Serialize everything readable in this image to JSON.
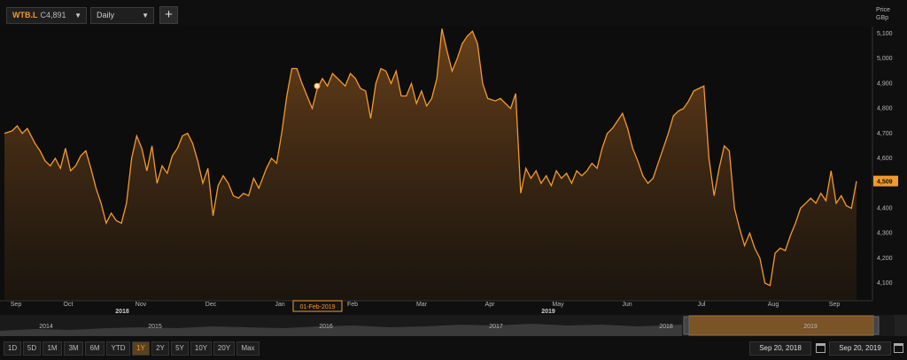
{
  "toolbar": {
    "symbol": "WTB.L",
    "symbol_price": "C4,891",
    "interval": "Daily",
    "add_label": "+"
  },
  "colors": {
    "line": "#f29a2e",
    "fill_top": "#7a4a1c",
    "background": "#0f0f0f",
    "label_bg": "#f29a2e"
  },
  "chart_data": {
    "type": "area",
    "ylabel": "Price\nGBp",
    "y_ticks": [
      4100,
      4200,
      4300,
      4400,
      4500,
      4600,
      4700,
      4800,
      4900,
      5000,
      5100
    ],
    "ylim": [
      4050,
      5150
    ],
    "grid": false,
    "last_value_label": "4,509",
    "crosshair_label": "01-Feb-2019",
    "x_month_ticks": [
      {
        "label": "Sep",
        "date": "2018-09-20"
      },
      {
        "label": "Oct",
        "date": "2018-10-01"
      },
      {
        "label": "Nov",
        "date": "2018-11-01"
      },
      {
        "label": "Dec",
        "date": "2018-12-01"
      },
      {
        "label": "Jan",
        "date": "2019-01-01"
      },
      {
        "label": "Feb",
        "date": "2019-02-01"
      },
      {
        "label": "Mar",
        "date": "2019-03-01"
      },
      {
        "label": "Apr",
        "date": "2019-04-01"
      },
      {
        "label": "May",
        "date": "2019-05-01"
      },
      {
        "label": "Jun",
        "date": "2019-06-01"
      },
      {
        "label": "Jul",
        "date": "2019-07-01"
      },
      {
        "label": "Aug",
        "date": "2019-08-01"
      },
      {
        "label": "Sep",
        "date": "2019-09-01"
      }
    ],
    "year_labels": [
      {
        "label": "2018",
        "date": "2018-10-15"
      },
      {
        "label": "2019",
        "date": "2019-05-01"
      }
    ],
    "marker": {
      "date": "2019-02-01",
      "value": 4890
    },
    "series": [
      {
        "points": [
          [
            "2018-09-20",
            4700
          ],
          [
            "2018-09-23",
            4710
          ],
          [
            "2018-09-25",
            4730
          ],
          [
            "2018-09-27",
            4700
          ],
          [
            "2018-09-29",
            4720
          ],
          [
            "2018-10-02",
            4660
          ],
          [
            "2018-10-04",
            4630
          ],
          [
            "2018-10-06",
            4590
          ],
          [
            "2018-10-08",
            4570
          ],
          [
            "2018-10-10",
            4600
          ],
          [
            "2018-10-12",
            4560
          ],
          [
            "2018-10-14",
            4640
          ],
          [
            "2018-10-16",
            4550
          ],
          [
            "2018-10-18",
            4570
          ],
          [
            "2018-10-20",
            4610
          ],
          [
            "2018-10-22",
            4630
          ],
          [
            "2018-10-24",
            4560
          ],
          [
            "2018-10-26",
            4480
          ],
          [
            "2018-10-28",
            4420
          ],
          [
            "2018-10-30",
            4340
          ],
          [
            "2018-11-01",
            4380
          ],
          [
            "2018-11-03",
            4350
          ],
          [
            "2018-11-05",
            4340
          ],
          [
            "2018-11-07",
            4420
          ],
          [
            "2018-11-09",
            4600
          ],
          [
            "2018-11-11",
            4690
          ],
          [
            "2018-11-13",
            4640
          ],
          [
            "2018-11-15",
            4550
          ],
          [
            "2018-11-17",
            4650
          ],
          [
            "2018-11-19",
            4500
          ],
          [
            "2018-11-21",
            4570
          ],
          [
            "2018-11-23",
            4540
          ],
          [
            "2018-11-25",
            4610
          ],
          [
            "2018-11-27",
            4640
          ],
          [
            "2018-11-29",
            4690
          ],
          [
            "2018-12-01",
            4700
          ],
          [
            "2018-12-03",
            4660
          ],
          [
            "2018-12-05",
            4590
          ],
          [
            "2018-12-07",
            4500
          ],
          [
            "2018-12-09",
            4560
          ],
          [
            "2018-12-11",
            4370
          ],
          [
            "2018-12-13",
            4490
          ],
          [
            "2018-12-15",
            4530
          ],
          [
            "2018-12-17",
            4500
          ],
          [
            "2018-12-19",
            4450
          ],
          [
            "2018-12-21",
            4440
          ],
          [
            "2018-12-23",
            4460
          ],
          [
            "2018-12-25",
            4450
          ],
          [
            "2018-12-27",
            4520
          ],
          [
            "2018-12-29",
            4480
          ],
          [
            "2019-01-01",
            4560
          ],
          [
            "2019-01-03",
            4600
          ],
          [
            "2019-01-05",
            4580
          ],
          [
            "2019-01-07",
            4700
          ],
          [
            "2019-01-09",
            4850
          ],
          [
            "2019-01-11",
            4960
          ],
          [
            "2019-01-13",
            4960
          ],
          [
            "2019-01-15",
            4900
          ],
          [
            "2019-01-17",
            4850
          ],
          [
            "2019-01-19",
            4800
          ],
          [
            "2019-01-21",
            4880
          ],
          [
            "2019-01-23",
            4920
          ],
          [
            "2019-01-25",
            4890
          ],
          [
            "2019-01-27",
            4940
          ],
          [
            "2019-01-29",
            4920
          ],
          [
            "2019-02-01",
            4890
          ],
          [
            "2019-02-03",
            4940
          ],
          [
            "2019-02-05",
            4920
          ],
          [
            "2019-02-07",
            4880
          ],
          [
            "2019-02-09",
            4870
          ],
          [
            "2019-02-11",
            4760
          ],
          [
            "2019-02-13",
            4900
          ],
          [
            "2019-02-15",
            4960
          ],
          [
            "2019-02-17",
            4950
          ],
          [
            "2019-02-19",
            4900
          ],
          [
            "2019-02-21",
            4950
          ],
          [
            "2019-02-23",
            4850
          ],
          [
            "2019-02-25",
            4850
          ],
          [
            "2019-02-27",
            4900
          ],
          [
            "2019-03-01",
            4820
          ],
          [
            "2019-03-03",
            4870
          ],
          [
            "2019-03-05",
            4810
          ],
          [
            "2019-03-07",
            4840
          ],
          [
            "2019-03-09",
            4920
          ],
          [
            "2019-03-11",
            5120
          ],
          [
            "2019-03-13",
            5030
          ],
          [
            "2019-03-15",
            4950
          ],
          [
            "2019-03-17",
            5000
          ],
          [
            "2019-03-19",
            5060
          ],
          [
            "2019-03-21",
            5090
          ],
          [
            "2019-03-23",
            5110
          ],
          [
            "2019-03-25",
            5060
          ],
          [
            "2019-03-27",
            4900
          ],
          [
            "2019-03-29",
            4840
          ],
          [
            "2019-04-01",
            4830
          ],
          [
            "2019-04-03",
            4840
          ],
          [
            "2019-04-05",
            4820
          ],
          [
            "2019-04-07",
            4800
          ],
          [
            "2019-04-09",
            4860
          ],
          [
            "2019-04-11",
            4460
          ],
          [
            "2019-04-13",
            4560
          ],
          [
            "2019-04-15",
            4520
          ],
          [
            "2019-04-17",
            4550
          ],
          [
            "2019-04-19",
            4500
          ],
          [
            "2019-04-21",
            4530
          ],
          [
            "2019-04-23",
            4490
          ],
          [
            "2019-04-25",
            4550
          ],
          [
            "2019-04-27",
            4520
          ],
          [
            "2019-04-29",
            4540
          ],
          [
            "2019-05-01",
            4500
          ],
          [
            "2019-05-03",
            4550
          ],
          [
            "2019-05-05",
            4530
          ],
          [
            "2019-05-07",
            4550
          ],
          [
            "2019-05-09",
            4580
          ],
          [
            "2019-05-11",
            4560
          ],
          [
            "2019-05-13",
            4640
          ],
          [
            "2019-05-15",
            4700
          ],
          [
            "2019-05-17",
            4720
          ],
          [
            "2019-05-19",
            4750
          ],
          [
            "2019-05-21",
            4780
          ],
          [
            "2019-05-23",
            4720
          ],
          [
            "2019-05-25",
            4640
          ],
          [
            "2019-05-27",
            4590
          ],
          [
            "2019-05-29",
            4530
          ],
          [
            "2019-05-31",
            4500
          ],
          [
            "2019-06-02",
            4520
          ],
          [
            "2019-06-04",
            4580
          ],
          [
            "2019-06-06",
            4640
          ],
          [
            "2019-06-08",
            4700
          ],
          [
            "2019-06-10",
            4770
          ],
          [
            "2019-06-12",
            4790
          ],
          [
            "2019-06-14",
            4800
          ],
          [
            "2019-06-16",
            4830
          ],
          [
            "2019-06-18",
            4870
          ],
          [
            "2019-06-20",
            4880
          ],
          [
            "2019-06-22",
            4890
          ],
          [
            "2019-06-24",
            4600
          ],
          [
            "2019-06-26",
            4450
          ],
          [
            "2019-06-28",
            4560
          ],
          [
            "2019-06-30",
            4650
          ],
          [
            "2019-07-02",
            4630
          ],
          [
            "2019-07-04",
            4400
          ],
          [
            "2019-07-06",
            4320
          ],
          [
            "2019-07-08",
            4250
          ],
          [
            "2019-07-10",
            4300
          ],
          [
            "2019-07-12",
            4240
          ],
          [
            "2019-07-14",
            4200
          ],
          [
            "2019-07-16",
            4100
          ],
          [
            "2019-07-18",
            4090
          ],
          [
            "2019-07-20",
            4220
          ],
          [
            "2019-07-22",
            4240
          ],
          [
            "2019-07-24",
            4230
          ],
          [
            "2019-07-26",
            4290
          ],
          [
            "2019-07-28",
            4340
          ],
          [
            "2019-07-30",
            4400
          ],
          [
            "2019-08-01",
            4420
          ],
          [
            "2019-08-03",
            4440
          ],
          [
            "2019-08-05",
            4420
          ],
          [
            "2019-08-07",
            4460
          ],
          [
            "2019-08-09",
            4430
          ],
          [
            "2019-08-11",
            4550
          ],
          [
            "2019-08-13",
            4420
          ],
          [
            "2019-08-15",
            4450
          ],
          [
            "2019-08-17",
            4410
          ],
          [
            "2019-08-19",
            4400
          ],
          [
            "2019-08-21",
            4509
          ]
        ]
      }
    ]
  },
  "navigator": {
    "year_labels": [
      "2014",
      "2015",
      "2016",
      "2017",
      "2018",
      "2019"
    ]
  },
  "range_buttons": [
    "1D",
    "5D",
    "1M",
    "3M",
    "6M",
    "YTD",
    "1Y",
    "2Y",
    "5Y",
    "10Y",
    "20Y",
    "Max"
  ],
  "active_range": "1Y",
  "date_range": {
    "from": "Sep 20, 2018",
    "to": "Sep 20, 2019"
  }
}
